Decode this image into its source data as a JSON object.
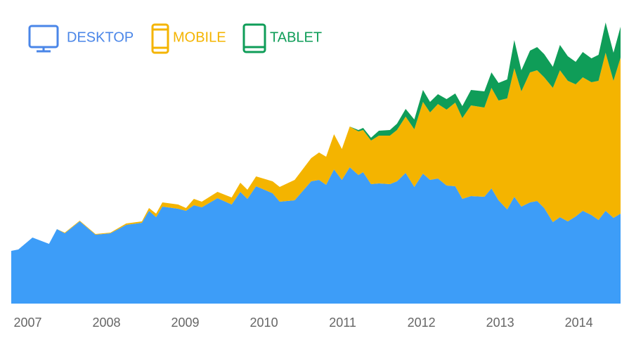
{
  "chart_data": {
    "type": "stacked_area",
    "x": [
      2006.79,
      2006.88,
      2007.06,
      2007.27,
      2007.37,
      2007.47,
      2007.66,
      2007.86,
      2008.05,
      2008.25,
      2008.45,
      2008.54,
      2008.63,
      2008.71,
      2008.91,
      2009.01,
      2009.11,
      2009.21,
      2009.41,
      2009.59,
      2009.7,
      2009.79,
      2009.9,
      2010.11,
      2010.2,
      2010.39,
      2010.6,
      2010.7,
      2010.79,
      2010.89,
      2010.99,
      2011.09,
      2011.2,
      2011.26,
      2011.36,
      2011.46,
      2011.6,
      2011.69,
      2011.8,
      2011.91,
      2012.02,
      2012.11,
      2012.21,
      2012.32,
      2012.43,
      2012.52,
      2012.63,
      2012.8,
      2012.89,
      2012.98,
      2013.09,
      2013.18,
      2013.27,
      2013.38,
      2013.47,
      2013.56,
      2013.67,
      2013.76,
      2013.86,
      2013.96,
      2014.05,
      2014.16,
      2014.25,
      2014.34,
      2014.44,
      2014.53
    ],
    "series": [
      {
        "name": "DESKTOP",
        "color": "#3d9df8",
        "legend_color": "#4a86e8",
        "values": [
          75,
          77,
          94,
          85,
          106,
          100,
          117,
          98,
          100,
          112,
          115,
          132,
          123,
          138,
          135,
          132,
          140,
          137,
          150,
          141,
          159,
          149,
          167,
          157,
          145,
          147,
          174,
          176,
          169,
          191,
          176,
          194,
          183,
          187,
          170,
          171,
          170,
          174,
          186,
          166,
          185,
          176,
          178,
          168,
          167,
          149,
          153,
          152,
          164,
          147,
          134,
          152,
          138,
          144,
          146,
          136,
          116,
          123,
          117,
          124,
          132,
          126,
          119,
          132,
          122,
          128
        ]
      },
      {
        "name": "MOBILE",
        "color": "#f4b400",
        "legend_color": "#f4b400",
        "values": [
          0,
          0,
          0,
          0,
          0,
          1,
          1,
          1,
          1,
          2,
          2,
          4,
          5,
          6,
          6,
          4,
          9,
          8,
          9,
          10,
          13,
          13,
          14,
          17,
          21,
          29,
          33,
          39,
          40,
          50,
          44,
          58,
          62,
          60,
          62,
          68,
          69,
          73,
          80,
          82,
          102,
          96,
          106,
          108,
          119,
          115,
          129,
          127,
          143,
          142,
          158,
          183,
          164,
          185,
          186,
          186,
          191,
          209,
          200,
          188,
          190,
          189,
          198,
          225,
          195,
          222
        ]
      },
      {
        "name": "TABLET",
        "color": "#0f9d58",
        "legend_color": "#0f9d58",
        "values": [
          0,
          0,
          0,
          0,
          0,
          0,
          0,
          0,
          0,
          0,
          0,
          0,
          0,
          0,
          0,
          0,
          0,
          0,
          0,
          0,
          0,
          0,
          0,
          0,
          0,
          0,
          0,
          0,
          0,
          0,
          0,
          0,
          2,
          3,
          4,
          7,
          8,
          9,
          11,
          14,
          17,
          15,
          14,
          15,
          13,
          17,
          22,
          23,
          22,
          25,
          27,
          40,
          30,
          31,
          33,
          33,
          30,
          36,
          35,
          32,
          36,
          34,
          37,
          43,
          40,
          44
        ]
      }
    ],
    "xlim": [
      2006.79,
      2014.53
    ],
    "xticks": [
      2007,
      2008,
      2009,
      2010,
      2011,
      2012,
      2013,
      2014
    ],
    "ylim": [
      0,
      400
    ]
  }
}
